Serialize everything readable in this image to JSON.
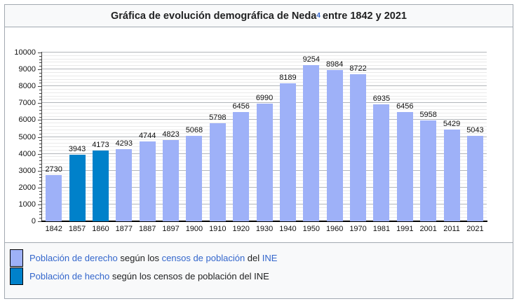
{
  "title": {
    "prefix": "Gráfica de evolución demográfica de Neda",
    "ref": "4",
    "suffix": " entre 1842 y 2021"
  },
  "legend": {
    "derecho": {
      "link1": "Población de derecho",
      "mid1": " según los ",
      "link2": "censos de población",
      "mid2": " del ",
      "link3": "INE"
    },
    "hecho": {
      "link1": "Población de hecho",
      "rest": " según los censos de población del INE"
    }
  },
  "colors": {
    "bar_derecho": "#9eb1f8",
    "bar_hecho": "#0081ca",
    "link_blue": "#3366cc",
    "box_background": "#f8f9fa",
    "box_border": "#a2a9b1",
    "grid_major": "#b2b6ba",
    "grid_minor": "#eaeaea"
  },
  "chart_data": {
    "type": "bar",
    "title": "Gráfica de evolución demográfica de Neda entre 1842 y 2021",
    "categories": [
      "1842",
      "1857",
      "1860",
      "1877",
      "1887",
      "1897",
      "1900",
      "1910",
      "1920",
      "1930",
      "1940",
      "1950",
      "1960",
      "1970",
      "1981",
      "1991",
      "2001",
      "2011",
      "2021"
    ],
    "values": [
      2730,
      3943,
      4173,
      4293,
      4744,
      4823,
      5068,
      5798,
      6456,
      6990,
      8189,
      9254,
      8984,
      8722,
      6935,
      6456,
      5958,
      5429,
      5043
    ],
    "series_key": [
      "derecho",
      "hecho",
      "hecho",
      "derecho",
      "derecho",
      "derecho",
      "derecho",
      "derecho",
      "derecho",
      "derecho",
      "derecho",
      "derecho",
      "derecho",
      "derecho",
      "derecho",
      "derecho",
      "derecho",
      "derecho",
      "derecho"
    ],
    "series_legend": [
      {
        "key": "derecho",
        "label": "Población de derecho según los censos de población del INE"
      },
      {
        "key": "hecho",
        "label": "Población de hecho según los censos de población del INE"
      }
    ],
    "xlabel": "",
    "ylabel": "",
    "ylim": [
      0,
      10000
    ],
    "y_major_step": 1000,
    "y_minor_step": 200,
    "grid": true,
    "legend_position": "bottom"
  }
}
